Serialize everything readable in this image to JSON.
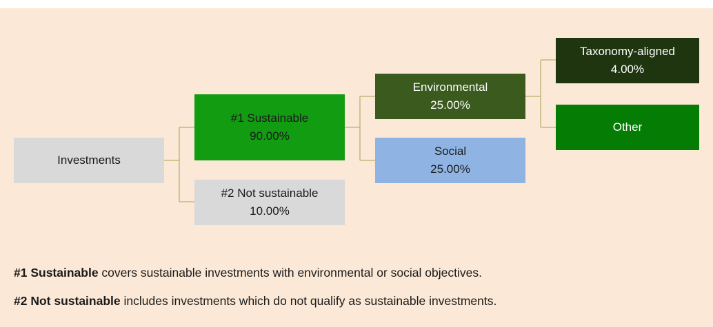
{
  "nodes": [
    {
      "label": "Investments"
    },
    {
      "label": "#1 Sustainable",
      "value": "90.00%"
    },
    {
      "label": "#2 Not sustainable",
      "value": "10.00%"
    },
    {
      "label": "Environmental",
      "value": "25.00%"
    },
    {
      "label": "Social",
      "value": "25.00%"
    },
    {
      "label": "Taxonomy-aligned",
      "value": "4.00%"
    },
    {
      "label": "Other"
    }
  ],
  "notes": [
    {
      "bold": "#1 Sustainable",
      "text": " covers sustainable investments with environmental or social objectives."
    },
    {
      "bold": "#2 Not sustainable",
      "text": " includes investments which do not qualify as sustainable investments."
    }
  ]
}
